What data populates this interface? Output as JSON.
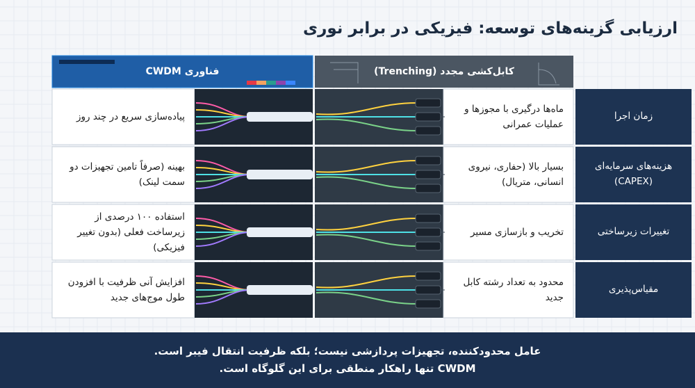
{
  "title": "ارزیابی گزینه‌های توسعه: فیزیکی در برابر نوری",
  "columns": {
    "cwdm": "فناوری CWDM",
    "trenching": "کابل‌کشی مجدد (Trenching)"
  },
  "rows": [
    {
      "label": "زمان اجرا",
      "trenching": "ماه‌ها درگیری با مجوزها و عملیات عمرانی",
      "cwdm": "پیاده‌سازی سریع در چند روز"
    },
    {
      "label": "هزینه‌های سرمایه‌ای (CAPEX)",
      "trenching": "بسیار بالا (حفاری، نیروی انسانی، متریال)",
      "cwdm": "بهینه (صرفاً تامین تجهیزات دو سمت لینک)"
    },
    {
      "label": "تغییرات زیرساختی",
      "trenching": "تخریب و بازسازی مسیر",
      "cwdm": "استفاده ۱۰۰ درصدی از زیرساخت فعلی (بدون تغییر فیزیکی)"
    },
    {
      "label": "مقیاس‌پذیری",
      "trenching": "محدود به تعداد رشته کابل جدید",
      "cwdm": "افزایش آنی ظرفیت با افزودن طول موج‌های جدید"
    }
  ],
  "footer": [
    "عامل محدودکننده، تجهیزات پردازشی نیست؛ بلکه ظرفیت انتقال فیبر است.",
    "CWDM تنها راهکار منطقی برای این گلوگاه است."
  ]
}
